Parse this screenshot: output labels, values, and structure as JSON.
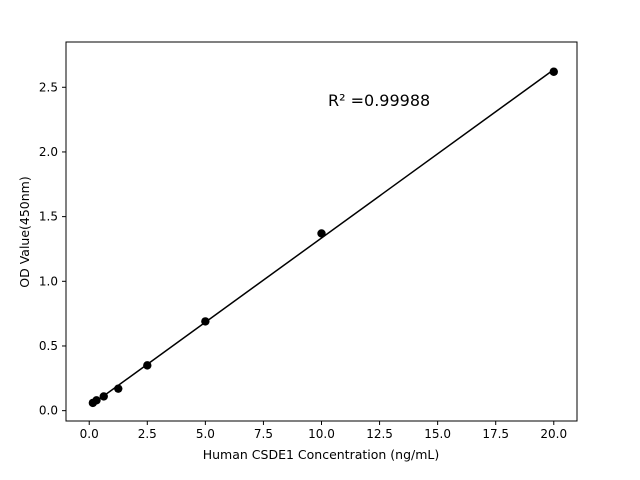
{
  "chart_data": {
    "type": "scatter",
    "title": "",
    "xlabel": "Human CSDE1 Concentration (ng/mL)",
    "ylabel": "OD Value(450nm)",
    "annotation": "R² =0.99988",
    "x": [
      0.156,
      0.313,
      0.625,
      1.25,
      2.5,
      5,
      10,
      20
    ],
    "y": [
      0.06,
      0.08,
      0.11,
      0.17,
      0.35,
      0.69,
      1.37,
      2.62
    ],
    "xticks": [
      0.0,
      2.5,
      5.0,
      7.5,
      10.0,
      12.5,
      15.0,
      17.5,
      20.0
    ],
    "yticks": [
      0.0,
      0.5,
      1.0,
      1.5,
      2.0,
      2.5
    ],
    "xlim": [
      -1.0,
      21.0
    ],
    "ylim": [
      -0.08,
      2.85
    ],
    "tick_decimals": 1,
    "line_color": "#000000",
    "marker_color": "#000000",
    "grid": false,
    "legend": "none",
    "fit": "linear-regression"
  }
}
